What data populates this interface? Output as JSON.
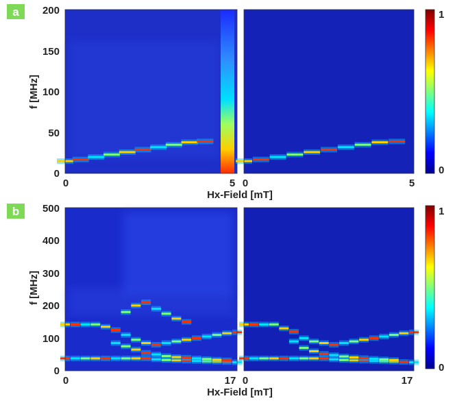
{
  "panels": [
    {
      "letter": "a",
      "xlabel": "Hx-Field [mT]",
      "ylabel": "f [MHz]",
      "x_ticks": [
        "0",
        "5"
      ],
      "y_ticks": [
        "0",
        "50",
        "100",
        "150",
        "200"
      ],
      "colorbar_ticks": [
        "1",
        "0"
      ]
    },
    {
      "letter": "b",
      "xlabel": "Hx-Field [mT]",
      "ylabel": "f [MHz]",
      "x_ticks": [
        "0",
        "17"
      ],
      "y_ticks": [
        "0",
        "100",
        "200",
        "300",
        "400",
        "500"
      ],
      "colorbar_ticks": [
        "1",
        "0"
      ]
    }
  ],
  "chart_data": [
    {
      "type": "heatmap",
      "panel": "a",
      "subplot": "left",
      "xlabel": "Hx-Field [mT]",
      "ylabel": "f [MHz]",
      "xlim": [
        0,
        5
      ],
      "ylim": [
        0,
        200
      ],
      "colorbar_range": [
        0,
        1
      ],
      "series": [
        {
          "x": [
            0,
            0.5,
            1.0,
            1.5,
            2.0,
            2.5,
            3.0,
            3.5,
            4.0,
            4.5
          ],
          "y": [
            15,
            17,
            20,
            23,
            26,
            29,
            32,
            35,
            38,
            39
          ]
        }
      ]
    },
    {
      "type": "heatmap",
      "panel": "a",
      "subplot": "right",
      "xlabel": "Hx-Field [mT]",
      "xlim": [
        0,
        5
      ],
      "ylim": [
        0,
        200
      ],
      "colorbar_range": [
        0,
        1
      ],
      "series": [
        {
          "x": [
            0,
            0.5,
            1.0,
            1.5,
            2.0,
            2.5,
            3.0,
            3.5,
            4.0,
            4.5
          ],
          "y": [
            15,
            17,
            20,
            23,
            26,
            29,
            32,
            35,
            38,
            39
          ]
        }
      ]
    },
    {
      "type": "heatmap",
      "panel": "b",
      "subplot": "left",
      "xlabel": "Hx-Field [mT]",
      "ylabel": "f [MHz]",
      "xlim": [
        0,
        17
      ],
      "ylim": [
        0,
        500
      ],
      "colorbar_range": [
        0,
        1
      ],
      "series": [
        {
          "x": [
            0,
            1,
            2,
            3,
            4,
            5,
            6,
            7,
            8,
            9,
            10,
            11,
            12,
            13,
            14,
            15,
            16,
            17
          ],
          "y": [
            142,
            142,
            142,
            142,
            135,
            125,
            110,
            95,
            85,
            80,
            85,
            90,
            95,
            100,
            105,
            110,
            115,
            118
          ]
        },
        {
          "x": [
            0,
            1,
            2,
            3,
            4,
            5,
            6,
            7,
            8,
            9,
            10,
            11,
            12,
            13,
            14,
            15,
            16,
            17
          ],
          "y": [
            38,
            38,
            38,
            38,
            38,
            38,
            38,
            38,
            38,
            35,
            33,
            32,
            31,
            30,
            29,
            28,
            27,
            26
          ]
        },
        {
          "x": [
            5,
            6,
            7,
            8,
            9,
            10,
            11,
            12,
            13,
            14,
            15,
            16
          ],
          "y": [
            85,
            75,
            65,
            55,
            50,
            45,
            42,
            40,
            38,
            36,
            34,
            32
          ]
        },
        {
          "x": [
            6,
            7,
            8,
            9,
            10,
            11,
            12
          ],
          "y": [
            180,
            200,
            210,
            190,
            175,
            160,
            150
          ]
        }
      ]
    },
    {
      "type": "heatmap",
      "panel": "b",
      "subplot": "right",
      "xlabel": "Hx-Field [mT]",
      "xlim": [
        0,
        17
      ],
      "ylim": [
        0,
        500
      ],
      "colorbar_range": [
        0,
        1
      ],
      "series": [
        {
          "x": [
            0,
            1,
            2,
            3,
            4,
            5,
            6,
            7,
            8,
            9,
            10,
            11,
            12,
            13,
            14,
            15,
            16,
            17
          ],
          "y": [
            142,
            142,
            142,
            142,
            130,
            120,
            100,
            90,
            85,
            80,
            85,
            90,
            95,
            100,
            105,
            110,
            115,
            118
          ]
        },
        {
          "x": [
            0,
            1,
            2,
            3,
            4,
            5,
            6,
            7,
            8,
            9,
            10,
            11,
            12,
            13,
            14,
            15,
            16,
            17
          ],
          "y": [
            38,
            38,
            38,
            38,
            38,
            38,
            38,
            38,
            38,
            35,
            33,
            32,
            31,
            30,
            29,
            28,
            27,
            26
          ]
        },
        {
          "x": [
            5,
            6,
            7,
            8,
            9,
            10,
            11,
            12,
            13,
            14,
            15
          ],
          "y": [
            90,
            70,
            60,
            52,
            48,
            44,
            41,
            39,
            37,
            35,
            33
          ]
        }
      ]
    }
  ]
}
